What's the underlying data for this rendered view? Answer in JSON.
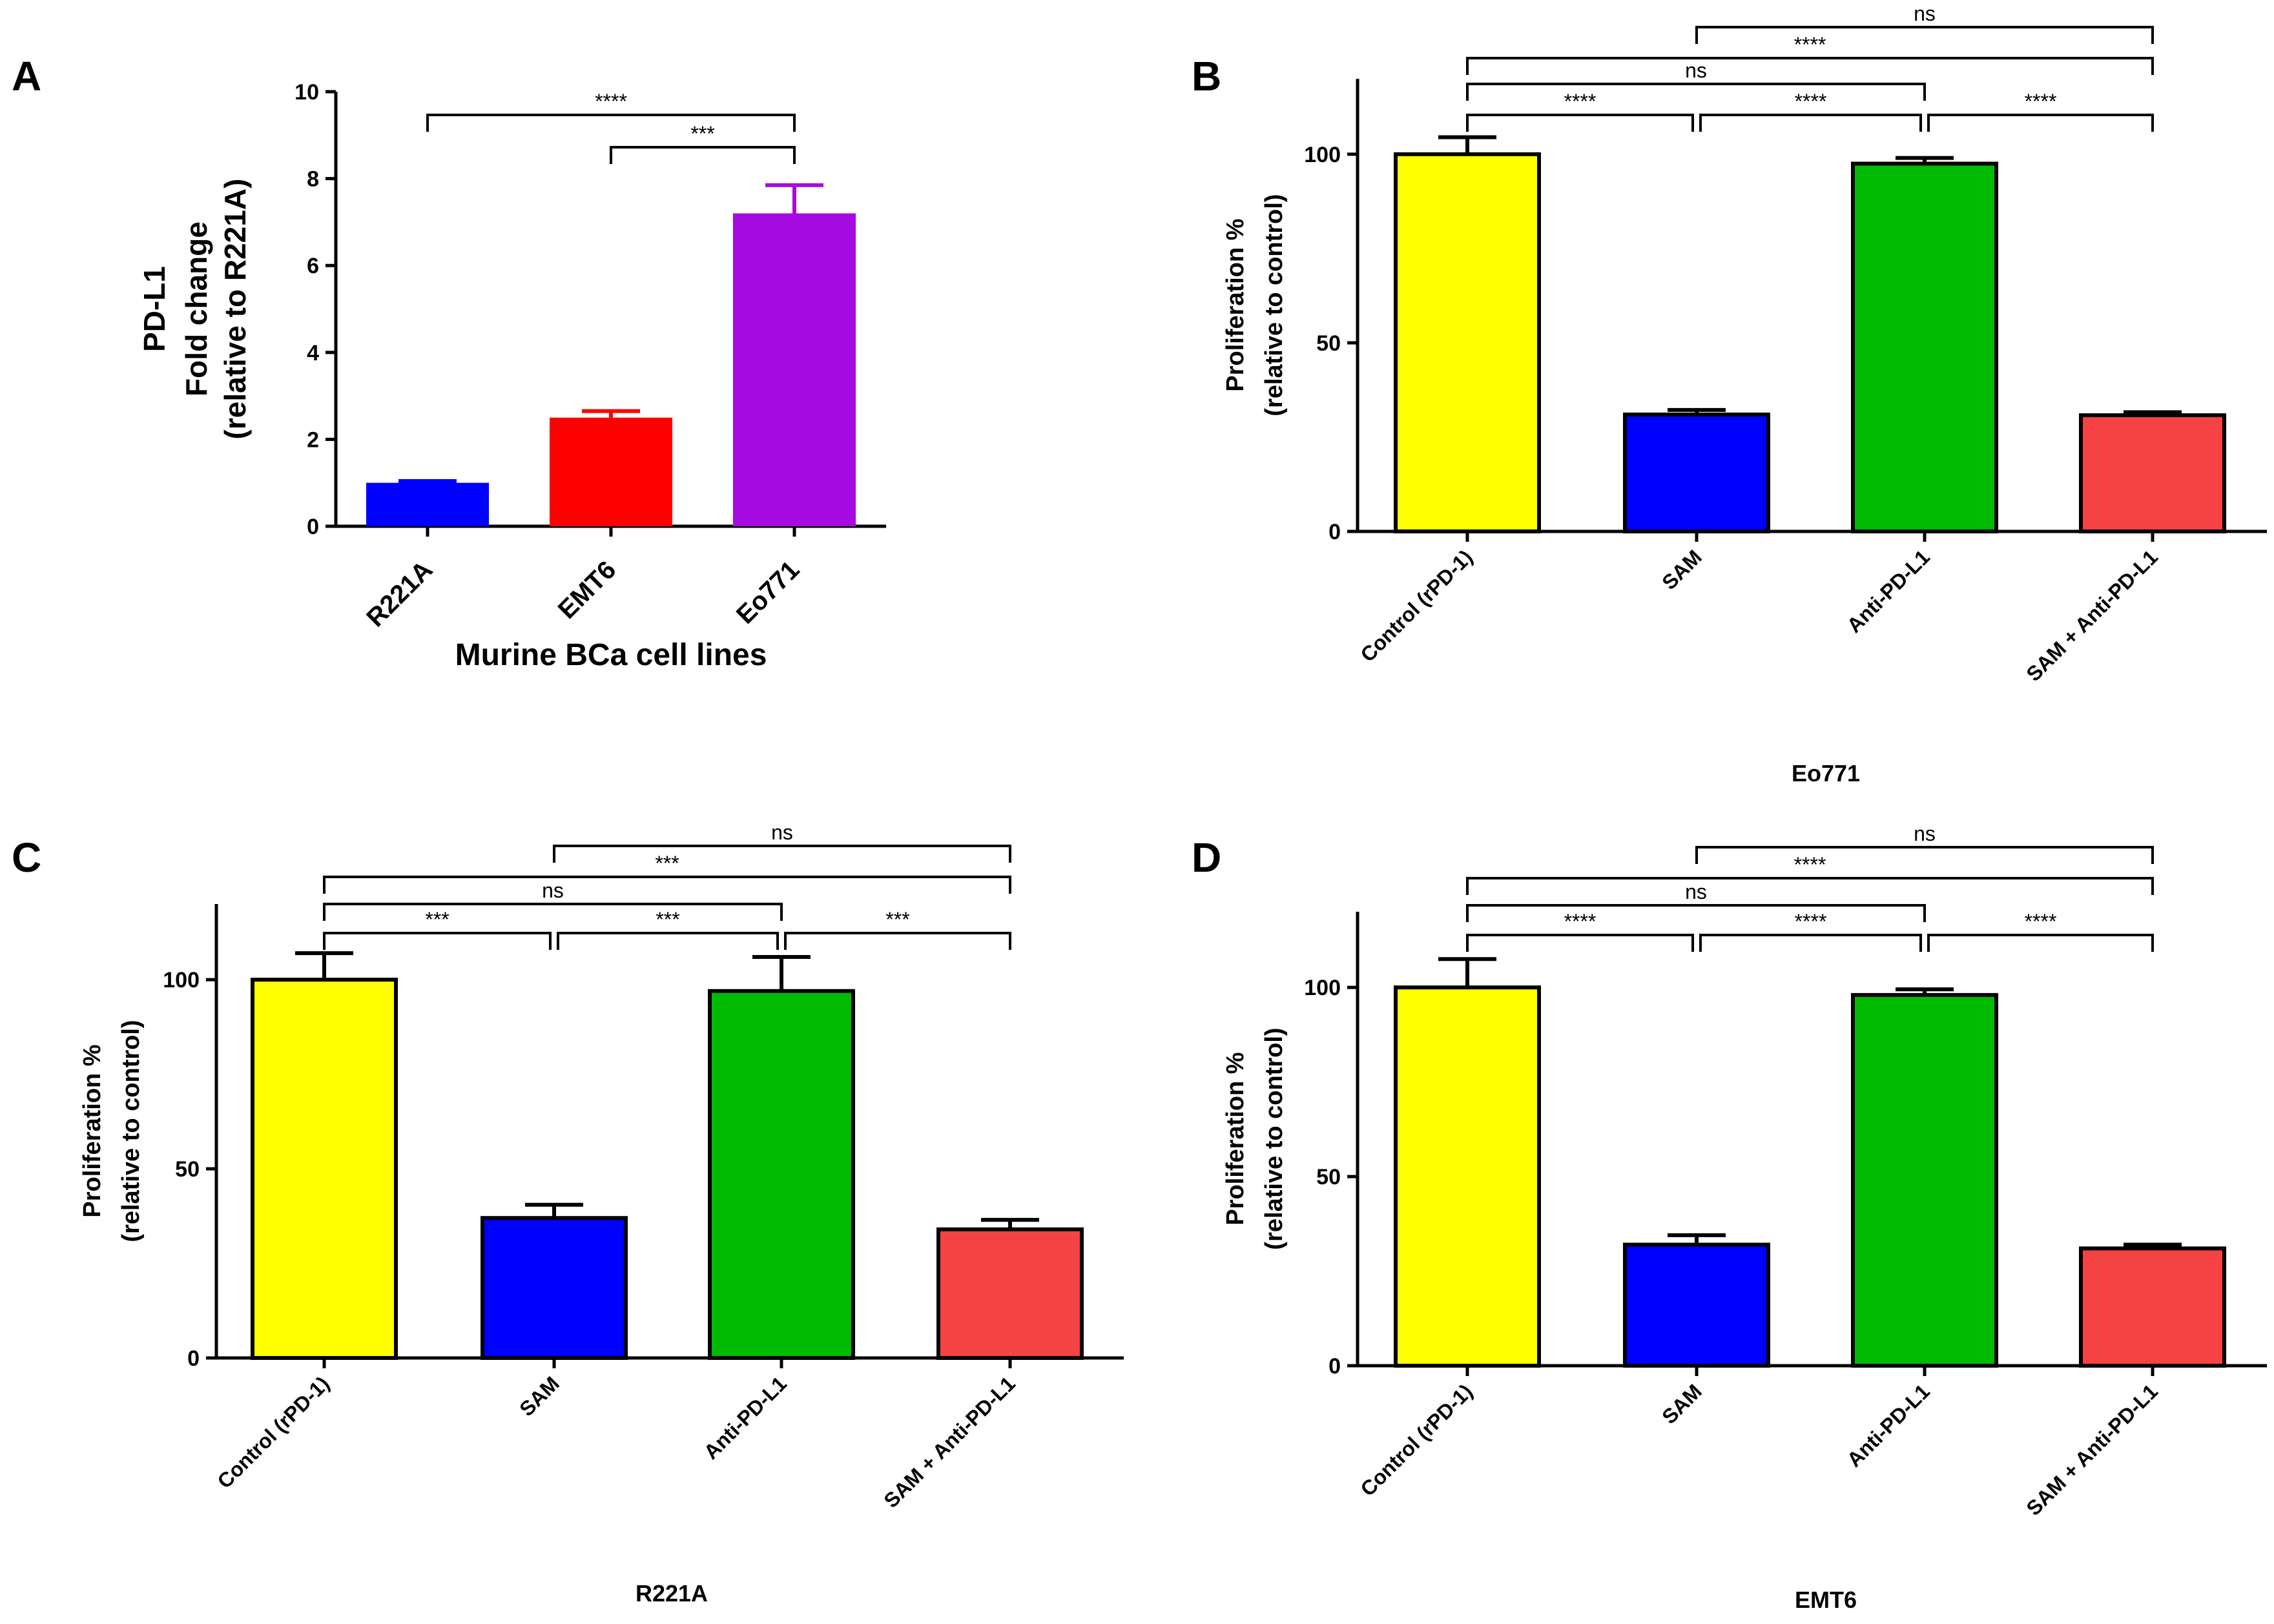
{
  "chart_data": [
    {
      "panel": "A",
      "type": "bar",
      "categories": [
        "R221A",
        "EMT6",
        "Eo771"
      ],
      "values": [
        1.0,
        2.5,
        7.2
      ],
      "errors": [
        0.04,
        0.15,
        0.65
      ],
      "colors": [
        "#0000ff",
        "#ff0000",
        "#a50ae0"
      ],
      "ylabel": [
        "PD-L1",
        "Fold change",
        "(relative to R221A)"
      ],
      "xlabel": "Murine BCa cell lines",
      "ylim": [
        0,
        10
      ],
      "yticks": [
        0,
        2,
        4,
        6,
        8,
        10
      ],
      "significance": [
        {
          "from": 0,
          "to": 2,
          "label": "****"
        },
        {
          "from": 1,
          "to": 2,
          "label": "***"
        }
      ]
    },
    {
      "panel": "B",
      "type": "bar",
      "categories": [
        "Control (rPD-1)",
        "SAM",
        "Anti-PD-L1",
        "SAM + Anti-PD-L1"
      ],
      "values": [
        100,
        31,
        97.5,
        30.8
      ],
      "errors": [
        4.5,
        1.2,
        1.5,
        0.8
      ],
      "colors": [
        "#ffff00",
        "#0000ff",
        "#00bb00",
        "#f54242"
      ],
      "ylabel": [
        "Proliferation %",
        "(relative to control)"
      ],
      "xlabel": "Eo771",
      "ylim": [
        0,
        120
      ],
      "yticks": [
        0,
        50,
        100
      ],
      "significance": [
        {
          "from": 1,
          "to": 3,
          "label": "ns",
          "level": 4
        },
        {
          "from": 0,
          "to": 3,
          "label": "****",
          "level": 3
        },
        {
          "from": 0,
          "to": 2,
          "label": "ns",
          "level": 2
        },
        {
          "from": 0,
          "to": 1,
          "label": "****",
          "level": 1
        },
        {
          "from": 1,
          "to": 2,
          "label": "****",
          "level": 1
        },
        {
          "from": 2,
          "to": 3,
          "label": "****",
          "level": 1
        }
      ]
    },
    {
      "panel": "C",
      "type": "bar",
      "categories": [
        "Control (rPD-1)",
        "SAM",
        "Anti-PD-L1",
        "SAM + Anti-PD-L1"
      ],
      "values": [
        100,
        37,
        97,
        34
      ],
      "errors": [
        7,
        3.5,
        9,
        2.5
      ],
      "colors": [
        "#ffff00",
        "#0000ff",
        "#00bb00",
        "#f54242"
      ],
      "ylabel": [
        "Proliferation %",
        "(relative to control)"
      ],
      "xlabel": "R221A",
      "ylim": [
        0,
        120
      ],
      "yticks": [
        0,
        50,
        100
      ],
      "significance": [
        {
          "from": 1,
          "to": 3,
          "label": "ns",
          "level": 4
        },
        {
          "from": 0,
          "to": 3,
          "label": "***",
          "level": 3
        },
        {
          "from": 0,
          "to": 2,
          "label": "ns",
          "level": 2
        },
        {
          "from": 0,
          "to": 1,
          "label": "***",
          "level": 1
        },
        {
          "from": 1,
          "to": 2,
          "label": "***",
          "level": 1
        },
        {
          "from": 2,
          "to": 3,
          "label": "***",
          "level": 1
        }
      ]
    },
    {
      "panel": "D",
      "type": "bar",
      "categories": [
        "Control (rPD-1)",
        "SAM",
        "Anti-PD-L1",
        "SAM + Anti-PD-L1"
      ],
      "values": [
        100,
        32,
        98,
        31
      ],
      "errors": [
        7.5,
        2.5,
        1.5,
        1.0
      ],
      "colors": [
        "#ffff00",
        "#0000ff",
        "#00bb00",
        "#f54242"
      ],
      "ylabel": [
        "Proliferation %",
        "(relative to control)"
      ],
      "xlabel": "EMT6",
      "ylim": [
        0,
        120
      ],
      "yticks": [
        0,
        50,
        100
      ],
      "significance": [
        {
          "from": 1,
          "to": 3,
          "label": "ns",
          "level": 4
        },
        {
          "from": 0,
          "to": 3,
          "label": "****",
          "level": 3
        },
        {
          "from": 0,
          "to": 2,
          "label": "ns",
          "level": 2
        },
        {
          "from": 0,
          "to": 1,
          "label": "****",
          "level": 1
        },
        {
          "from": 1,
          "to": 2,
          "label": "****",
          "level": 1
        },
        {
          "from": 2,
          "to": 3,
          "label": "****",
          "level": 1
        }
      ]
    }
  ]
}
